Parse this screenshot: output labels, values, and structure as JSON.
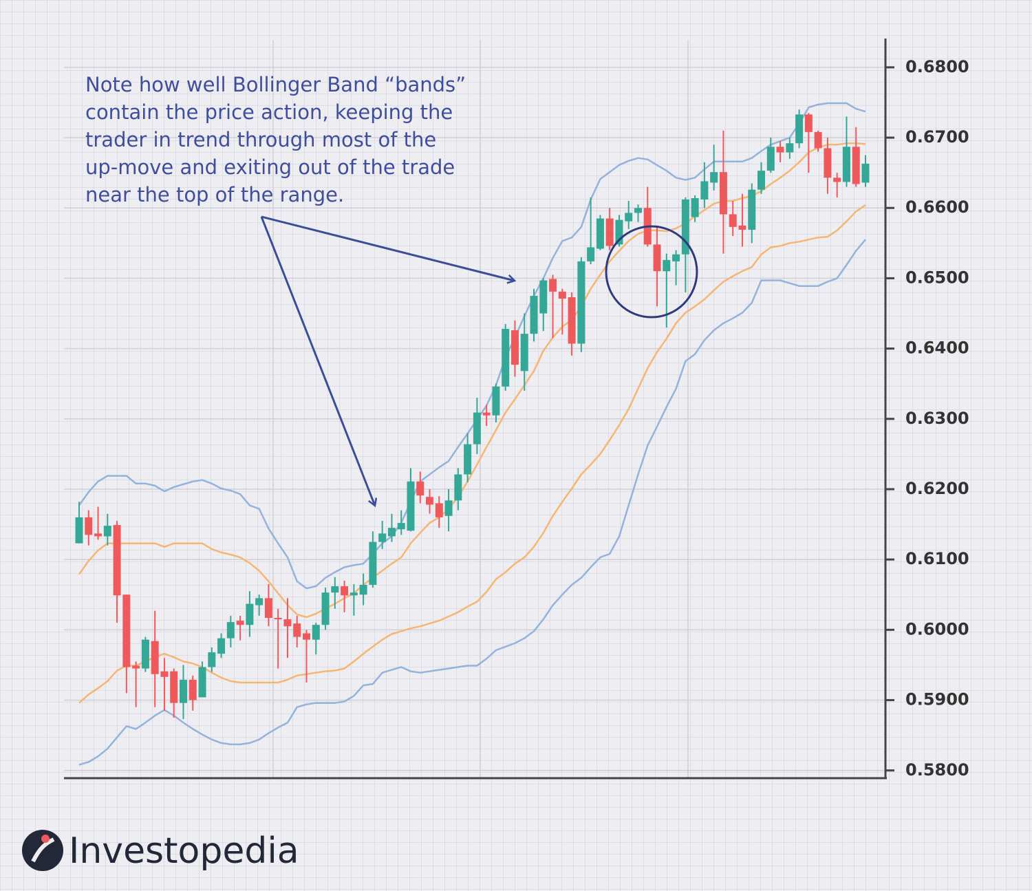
{
  "chart_data": {
    "type": "candlestick",
    "annotation": [
      "Note how well Bollinger Band “bands”",
      "contain the price action, keeping the",
      "trader in trend through most of the",
      "up-move and exiting out of the trade",
      "near the top of the range."
    ],
    "logo": "Investopedia",
    "up_color": "#35a796",
    "down_color": "#ee5a5c",
    "grid": true,
    "ylim": [
      0.5789,
      0.6839
    ],
    "yticks": [
      {
        "value": 0.58,
        "label": "0.5800"
      },
      {
        "value": 0.59,
        "label": "0.5900"
      },
      {
        "value": 0.6,
        "label": "0.6000"
      },
      {
        "value": 0.61,
        "label": "0.6100"
      },
      {
        "value": 0.62,
        "label": "0.6200"
      },
      {
        "value": 0.63,
        "label": "0.6300"
      },
      {
        "value": 0.64,
        "label": "0.6400"
      },
      {
        "value": 0.65,
        "label": "0.6500"
      },
      {
        "value": 0.66,
        "label": "0.6600"
      },
      {
        "value": 0.67,
        "label": "0.6700"
      },
      {
        "value": 0.68,
        "label": "0.6800"
      }
    ],
    "open": [
      0.6123,
      0.616,
      0.6137,
      0.6133,
      0.6149,
      0.605,
      0.5949,
      0.5945,
      0.5984,
      0.5941,
      0.5941,
      0.5896,
      0.5929,
      0.5904,
      0.5947,
      0.5966,
      0.5988,
      0.6013,
      0.6007,
      0.6035,
      0.6045,
      0.6017,
      0.6015,
      0.6009,
      0.5995,
      0.5986,
      0.6007,
      0.6053,
      0.6062,
      0.6049,
      0.605,
      0.6064,
      0.6125,
      0.6133,
      0.6143,
      0.6141,
      0.6211,
      0.6189,
      0.618,
      0.6162,
      0.6184,
      0.6221,
      0.6264,
      0.6309,
      0.6305,
      0.6346,
      0.6426,
      0.6368,
      0.6421,
      0.645,
      0.6499,
      0.6481,
      0.6473,
      0.6407,
      0.6524,
      0.6542,
      0.6585,
      0.6548,
      0.6581,
      0.6593,
      0.66,
      0.6548,
      0.651,
      0.6524,
      0.6534,
      0.6587,
      0.6612,
      0.6636,
      0.6651,
      0.6591,
      0.6575,
      0.6569,
      0.6626,
      0.6653,
      0.6687,
      0.6679,
      0.6692,
      0.6733,
      0.6708,
      0.6685,
      0.6643,
      0.6637,
      0.6687,
      0.6636
    ],
    "high": [
      0.6182,
      0.617,
      0.6175,
      0.6165,
      0.6155,
      0.605,
      0.5955,
      0.599,
      0.6027,
      0.596,
      0.5945,
      0.595,
      0.5935,
      0.5955,
      0.5975,
      0.5995,
      0.602,
      0.602,
      0.6055,
      0.605,
      0.6065,
      0.603,
      0.6045,
      0.602,
      0.6,
      0.601,
      0.606,
      0.6075,
      0.607,
      0.6065,
      0.608,
      0.614,
      0.6155,
      0.6165,
      0.617,
      0.623,
      0.6225,
      0.62,
      0.619,
      0.62,
      0.623,
      0.628,
      0.633,
      0.632,
      0.635,
      0.6435,
      0.644,
      0.645,
      0.6485,
      0.65,
      0.6505,
      0.6485,
      0.648,
      0.653,
      0.6615,
      0.659,
      0.66,
      0.659,
      0.661,
      0.6605,
      0.663,
      0.6575,
      0.6535,
      0.654,
      0.6615,
      0.6618,
      0.6665,
      0.669,
      0.671,
      0.661,
      0.662,
      0.6635,
      0.6665,
      0.67,
      0.6695,
      0.67,
      0.674,
      0.6735,
      0.671,
      0.67,
      0.665,
      0.673,
      0.6715,
      0.6675
    ],
    "low": [
      0.6123,
      0.612,
      0.6128,
      0.612,
      0.601,
      0.591,
      0.589,
      0.594,
      0.589,
      0.5885,
      0.5875,
      0.5873,
      0.5885,
      0.5904,
      0.594,
      0.596,
      0.5975,
      0.5985,
      0.599,
      0.602,
      0.6005,
      0.5945,
      0.596,
      0.5975,
      0.5925,
      0.5965,
      0.6,
      0.603,
      0.6025,
      0.602,
      0.6035,
      0.606,
      0.6115,
      0.6125,
      0.6135,
      0.614,
      0.618,
      0.6165,
      0.6145,
      0.614,
      0.617,
      0.621,
      0.625,
      0.629,
      0.6295,
      0.634,
      0.636,
      0.634,
      0.641,
      0.6425,
      0.6415,
      0.642,
      0.639,
      0.6395,
      0.652,
      0.654,
      0.654,
      0.6545,
      0.657,
      0.658,
      0.6545,
      0.646,
      0.643,
      0.649,
      0.648,
      0.658,
      0.66,
      0.6625,
      0.6535,
      0.656,
      0.6545,
      0.655,
      0.662,
      0.665,
      0.6665,
      0.667,
      0.6685,
      0.665,
      0.668,
      0.662,
      0.6615,
      0.663,
      0.663,
      0.663
    ],
    "close": [
      0.616,
      0.6135,
      0.6133,
      0.6148,
      0.6049,
      0.5947,
      0.5945,
      0.5986,
      0.5937,
      0.5933,
      0.5896,
      0.5929,
      0.59,
      0.5947,
      0.5968,
      0.5988,
      0.6011,
      0.6007,
      0.6037,
      0.6045,
      0.6017,
      0.6015,
      0.6005,
      0.599,
      0.5986,
      0.6007,
      0.6053,
      0.6062,
      0.6049,
      0.6053,
      0.6064,
      0.6125,
      0.6137,
      0.6145,
      0.6152,
      0.6211,
      0.6191,
      0.6178,
      0.616,
      0.6184,
      0.6221,
      0.6264,
      0.6309,
      0.6305,
      0.6346,
      0.6428,
      0.6377,
      0.6421,
      0.6475,
      0.6497,
      0.6481,
      0.6471,
      0.6407,
      0.6524,
      0.6544,
      0.6585,
      0.6546,
      0.6583,
      0.6593,
      0.66,
      0.6548,
      0.651,
      0.6526,
      0.6534,
      0.6612,
      0.6614,
      0.6638,
      0.6651,
      0.6591,
      0.6573,
      0.6569,
      0.6626,
      0.6653,
      0.6687,
      0.6679,
      0.6692,
      0.6733,
      0.6708,
      0.6685,
      0.6643,
      0.6637,
      0.6687,
      0.6634,
      0.6663
    ],
    "series": [
      {
        "color": "#93b2dc",
        "values": [
          0.6177,
          0.6196,
          0.6211,
          0.6219,
          0.6219,
          0.6219,
          0.6208,
          0.6208,
          0.6205,
          0.6197,
          0.6203,
          0.6207,
          0.6211,
          0.6213,
          0.6208,
          0.6201,
          0.6198,
          0.6193,
          0.6177,
          0.6172,
          0.6144,
          0.6123,
          0.6103,
          0.6069,
          0.6059,
          0.6062,
          0.6074,
          0.6082,
          0.6089,
          0.6092,
          0.6094,
          0.6108,
          0.6123,
          0.6133,
          0.6152,
          0.6182,
          0.6211,
          0.6221,
          0.6231,
          0.624,
          0.626,
          0.6279,
          0.6299,
          0.6319,
          0.6348,
          0.6387,
          0.6416,
          0.6446,
          0.6475,
          0.65,
          0.6529,
          0.6553,
          0.6558,
          0.6573,
          0.6612,
          0.6641,
          0.6651,
          0.6661,
          0.6667,
          0.6671,
          0.6669,
          0.6661,
          0.6653,
          0.6643,
          0.664,
          0.6643,
          0.6655,
          0.6666,
          0.6666,
          0.6666,
          0.6666,
          0.6671,
          0.6681,
          0.669,
          0.6695,
          0.67,
          0.672,
          0.6743,
          0.6747,
          0.6749,
          0.6749,
          0.6749,
          0.6741,
          0.6737
        ]
      },
      {
        "color": "#f7b572",
        "values": [
          0.6079,
          0.6098,
          0.6113,
          0.6123,
          0.6123,
          0.6123,
          0.6123,
          0.6123,
          0.6123,
          0.6118,
          0.6123,
          0.6123,
          0.6123,
          0.6123,
          0.6115,
          0.611,
          0.6107,
          0.6103,
          0.6095,
          0.6084,
          0.6069,
          0.6052,
          0.6035,
          0.6022,
          0.6018,
          0.6023,
          0.603,
          0.6037,
          0.6045,
          0.6052,
          0.6064,
          0.6074,
          0.6084,
          0.6094,
          0.6103,
          0.6123,
          0.6138,
          0.6152,
          0.616,
          0.6172,
          0.6189,
          0.6211,
          0.6235,
          0.626,
          0.6284,
          0.6309,
          0.6328,
          0.6348,
          0.6368,
          0.6397,
          0.6416,
          0.6431,
          0.6441,
          0.646,
          0.6485,
          0.6505,
          0.6524,
          0.6539,
          0.6553,
          0.6563,
          0.6568,
          0.6568,
          0.6567,
          0.6571,
          0.6578,
          0.6588,
          0.6597,
          0.6606,
          0.661,
          0.661,
          0.6614,
          0.6617,
          0.6624,
          0.6634,
          0.6643,
          0.6653,
          0.6665,
          0.6679,
          0.6686,
          0.669,
          0.669,
          0.6692,
          0.6692,
          0.6691
        ]
      },
      {
        "color": "#f7b572",
        "values": [
          0.5896,
          0.5908,
          0.5917,
          0.5927,
          0.5942,
          0.5949,
          0.5949,
          0.5955,
          0.5961,
          0.5966,
          0.5961,
          0.5955,
          0.5952,
          0.5947,
          0.5939,
          0.5932,
          0.5927,
          0.5925,
          0.5925,
          0.5925,
          0.5925,
          0.5925,
          0.5929,
          0.5935,
          0.5937,
          0.5939,
          0.5941,
          0.5942,
          0.5945,
          0.5955,
          0.5966,
          0.5976,
          0.5986,
          0.5994,
          0.5998,
          0.6002,
          0.6005,
          0.6009,
          0.6013,
          0.6019,
          0.6025,
          0.6033,
          0.604,
          0.6054,
          0.6072,
          0.6082,
          0.6094,
          0.6103,
          0.6118,
          0.6138,
          0.6162,
          0.6182,
          0.6201,
          0.6221,
          0.6235,
          0.625,
          0.627,
          0.6291,
          0.6314,
          0.6343,
          0.6372,
          0.6395,
          0.6414,
          0.6436,
          0.6451,
          0.646,
          0.647,
          0.6483,
          0.6495,
          0.6503,
          0.651,
          0.6516,
          0.6534,
          0.6544,
          0.6546,
          0.655,
          0.6552,
          0.6555,
          0.6558,
          0.6559,
          0.6568,
          0.6581,
          0.6595,
          0.6604
        ]
      },
      {
        "color": "#93b2dc",
        "values": [
          0.5808,
          0.5812,
          0.582,
          0.5831,
          0.5847,
          0.5863,
          0.5859,
          0.5868,
          0.5878,
          0.5886,
          0.5878,
          0.5868,
          0.5859,
          0.5851,
          0.5844,
          0.5839,
          0.5837,
          0.5837,
          0.5839,
          0.5844,
          0.5853,
          0.5861,
          0.5868,
          0.589,
          0.5894,
          0.5896,
          0.5896,
          0.5896,
          0.5898,
          0.5906,
          0.5921,
          0.5923,
          0.5939,
          0.5943,
          0.5947,
          0.5941,
          0.5939,
          0.5941,
          0.5943,
          0.5945,
          0.5947,
          0.5949,
          0.5949,
          0.5959,
          0.5971,
          0.5976,
          0.5981,
          0.5988,
          0.5998,
          0.6015,
          0.6035,
          0.605,
          0.6064,
          0.6074,
          0.6089,
          0.6103,
          0.6108,
          0.6133,
          0.6177,
          0.6221,
          0.6262,
          0.6289,
          0.6317,
          0.6343,
          0.6382,
          0.6392,
          0.6412,
          0.6426,
          0.6436,
          0.6443,
          0.6451,
          0.6465,
          0.6497,
          0.6497,
          0.6497,
          0.6493,
          0.6489,
          0.6489,
          0.6489,
          0.6495,
          0.65,
          0.6519,
          0.6539,
          0.6555
        ]
      }
    ]
  }
}
